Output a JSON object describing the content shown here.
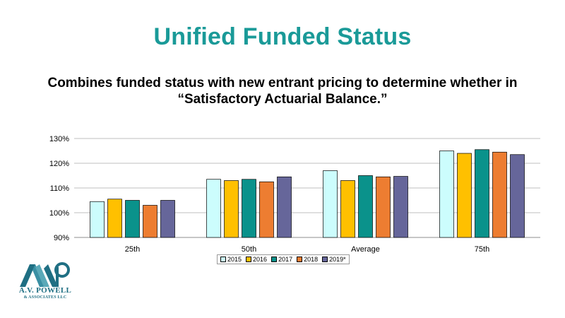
{
  "slide": {
    "title": "Unified Funded Status",
    "subtitle": "Combines funded status with new entrant pricing to determine whether in “Satisfactory Actuarial Balance.”"
  },
  "logo": {
    "name": "A.V. POWELL",
    "sub": "& ASSOCIATES LLC",
    "initials": "AVP"
  },
  "colors": {
    "title": "#1a9a98",
    "s2015": "#ccfdfd",
    "s2016": "#ffc000",
    "s2017": "#0a928b",
    "s2018": "#ed7d31",
    "s2019": "#66669a"
  },
  "chart_data": {
    "type": "bar",
    "title": "",
    "xlabel": "",
    "ylabel": "",
    "categories": [
      "25th",
      "50th",
      "Average",
      "75th"
    ],
    "ylim": [
      0.9,
      1.3
    ],
    "yticks": [
      0.9,
      1.0,
      1.1,
      1.2,
      1.3
    ],
    "ytick_labels": [
      "90%",
      "100%",
      "110%",
      "120%",
      "130%"
    ],
    "grid": true,
    "legend": "bottom",
    "series": [
      {
        "name": "2015",
        "color": "#ccfdfd",
        "values": [
          1.045,
          1.135,
          1.17,
          1.25
        ]
      },
      {
        "name": "2016",
        "color": "#ffc000",
        "values": [
          1.055,
          1.13,
          1.13,
          1.24
        ]
      },
      {
        "name": "2017",
        "color": "#0a928b",
        "values": [
          1.05,
          1.135,
          1.15,
          1.255
        ]
      },
      {
        "name": "2018",
        "color": "#ed7d31",
        "values": [
          1.03,
          1.125,
          1.145,
          1.245
        ]
      },
      {
        "name": "2019*",
        "color": "#66669a",
        "values": [
          1.05,
          1.145,
          1.147,
          1.235
        ]
      }
    ]
  }
}
